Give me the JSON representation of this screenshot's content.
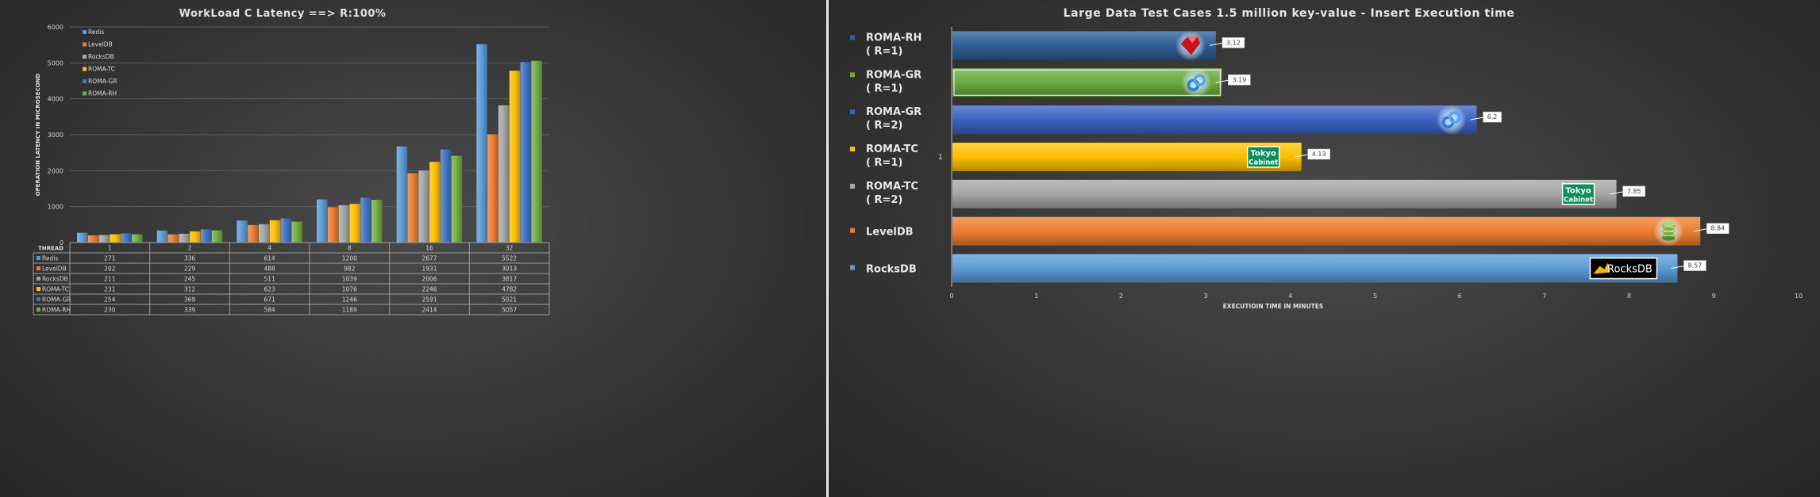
{
  "chart_data": [
    {
      "type": "bar",
      "title": "WorkLoad  C Latency ==>  R:100%",
      "xlabel": "THREAD",
      "ylabel": "OPERATION LATENCY IN MICROSECOND",
      "ylim": [
        0,
        6000
      ],
      "yticks": [
        "0",
        "1000",
        "2000",
        "3000",
        "4000",
        "5000",
        "6000"
      ],
      "categories": [
        "1",
        "2",
        "4",
        "8",
        "16",
        "32"
      ],
      "legend_position": "top-left",
      "series": [
        {
          "name": "Redis",
          "color": "#5b9bd5",
          "values": [
            271,
            336,
            614,
            1200,
            2677,
            5522
          ]
        },
        {
          "name": "LevelDB",
          "color": "#ed7d31",
          "values": [
            202,
            229,
            488,
            982,
            1931,
            3013
          ]
        },
        {
          "name": "RocksDB",
          "color": "#a5a5a5",
          "values": [
            211,
            245,
            511,
            1039,
            2006,
            3817
          ]
        },
        {
          "name": "ROMA-TC",
          "color": "#ffc000",
          "values": [
            231,
            312,
            623,
            1076,
            2246,
            4782
          ]
        },
        {
          "name": "ROMA-GR",
          "color": "#4472c4",
          "values": [
            254,
            369,
            671,
            1246,
            2591,
            5021
          ]
        },
        {
          "name": "ROMA-RH",
          "color": "#70ad47",
          "values": [
            230,
            339,
            584,
            1189,
            2414,
            5057
          ]
        }
      ]
    },
    {
      "type": "bar",
      "orientation": "horizontal",
      "title": "Large Data Test Cases 1.5 million key-value - Insert Execution time",
      "xlabel": "EXECUTIOIN TIME IN MINUTES",
      "xlim": [
        0,
        10
      ],
      "xticks": [
        "0",
        "1",
        "2",
        "3",
        "4",
        "5",
        "6",
        "7",
        "8",
        "9",
        "10"
      ],
      "series": [
        {
          "line1": "ROMA-RH",
          "line2": "( R=1)",
          "value": 3.12,
          "label": "3.12",
          "color": "#2e5f96",
          "icon": "ruby-icon"
        },
        {
          "line1": "ROMA-GR",
          "line2": "( R=1)",
          "value": 3.19,
          "label": "3.19",
          "color": "#6aaa3f",
          "icon": "gluster-icon"
        },
        {
          "line1": "ROMA-GR",
          "line2": "( R=2)",
          "value": 6.2,
          "label": "6.2",
          "color": "#3b63c3",
          "icon": "gluster-icon"
        },
        {
          "line1": "ROMA-TC",
          "line2": "( R=1)",
          "value": 4.13,
          "label": "4.13",
          "color": "#ffc000",
          "icon": "tokyo-cabinet-logo",
          "marker": "1"
        },
        {
          "line1": "ROMA-TC",
          "line2": "( R=2)",
          "value": 7.85,
          "label": "7.85",
          "color": "#a5a5a5",
          "icon": "tokyo-cabinet-logo"
        },
        {
          "line1": "LevelDB",
          "line2": "",
          "value": 8.84,
          "label": "8.84",
          "color": "#ed7d31",
          "icon": "leveldb-icon"
        },
        {
          "line1": "RocksDB",
          "line2": "",
          "value": 8.57,
          "label": "8.57",
          "color": "#5b9bd5",
          "icon": "rocksdb-logo"
        }
      ],
      "logos": {
        "tokyo_line1": "Tokyo",
        "tokyo_line2": "Cabinet",
        "rocksdb": "RocksDB"
      }
    }
  ]
}
